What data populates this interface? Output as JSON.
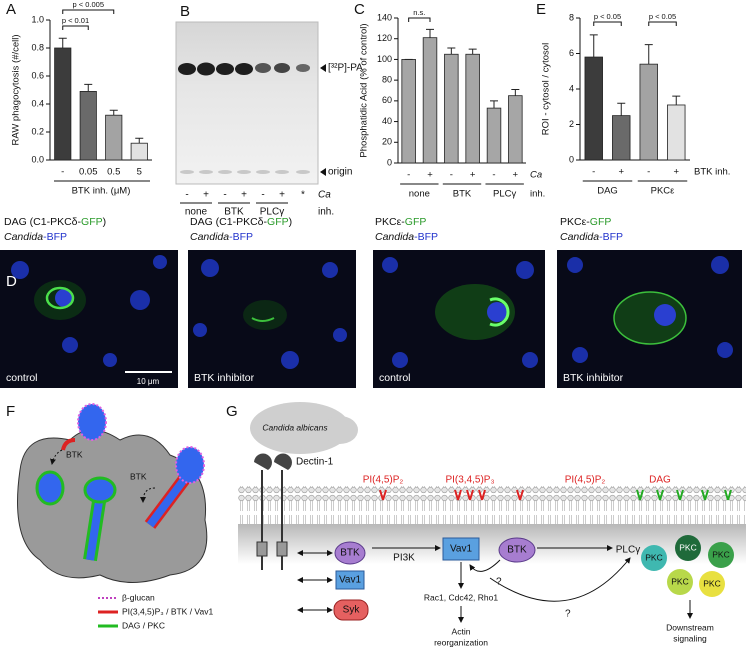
{
  "chart_data": [
    {
      "type": "bar",
      "panel": "A",
      "y_label": "RAW phagocytosis (#/cell)",
      "x_label": "BTK inh. (μM)",
      "categories": [
        "-",
        "0.05",
        "0.5",
        "5"
      ],
      "values": [
        0.8,
        0.49,
        0.32,
        0.12
      ],
      "errors": [
        0.07,
        0.05,
        0.035,
        0.035
      ],
      "colors": [
        "#3c3c3c",
        "#6a6a6a",
        "#a3a3a3",
        "#e2e2e2"
      ],
      "ylim": [
        0,
        1.0
      ],
      "yticks": [
        {
          "value": 0,
          "label": "0.0"
        },
        {
          "value": 0.2,
          "label": "0.2"
        },
        {
          "value": 0.4,
          "label": "0.4"
        },
        {
          "value": 0.6,
          "label": "0.6"
        },
        {
          "value": 0.8,
          "label": "0.8"
        },
        {
          "value": 1.0,
          "label": "1.0"
        }
      ],
      "annotations": [
        "p < 0.005",
        "p < 0.01"
      ]
    },
    {
      "type": "bar",
      "panel": "C",
      "y_label": "Phosphatidic Acid (% of control)",
      "categories": [
        "-",
        "+",
        "-",
        "+",
        "-",
        "+"
      ],
      "groups": [
        "none",
        "BTK",
        "PLCγ"
      ],
      "row_labels": [
        "Ca",
        "inh."
      ],
      "values": [
        100,
        121,
        105,
        105,
        53,
        65
      ],
      "errors": [
        0,
        8,
        6,
        5,
        7,
        6
      ],
      "color": "#a6a6a6",
      "ylim": [
        0,
        140
      ],
      "yticks": [
        0,
        20,
        40,
        60,
        80,
        100,
        120,
        140
      ],
      "annotations": [
        "n.s."
      ]
    },
    {
      "type": "bar",
      "panel": "E",
      "y_label": "ROI - cytosol / cytosol",
      "categories": [
        "-",
        "+",
        "-",
        "+"
      ],
      "groups": [
        "DAG",
        "PKCε"
      ],
      "row_labels": [
        "BTK inh."
      ],
      "values": [
        5.8,
        2.5,
        5.4,
        3.1
      ],
      "errors": [
        1.25,
        0.7,
        1.1,
        0.5
      ],
      "colors": [
        "#3c3c3c",
        "#6a6a6a",
        "#a3a3a3",
        "#e2e2e2"
      ],
      "ylim": [
        0,
        8
      ],
      "yticks": [
        0,
        2,
        4,
        6,
        8
      ],
      "annotations": [
        "p < 0.05",
        "p < 0.05"
      ]
    }
  ],
  "gel": {
    "panel": "B",
    "band_label": "[³²P]-PA",
    "origin_label": "origin",
    "lanes": [
      "-",
      "+",
      "-",
      "+",
      "-",
      "+",
      "*"
    ],
    "row_labels": [
      "Ca",
      "inh."
    ],
    "groups": [
      "none",
      "BTK",
      "PLCγ"
    ]
  },
  "microscopy": {
    "panel": "D",
    "scale_bar": "10 μm",
    "images": [
      {
        "title": [
          "DAG (C1-PKCδ-",
          "GFP",
          ")"
        ],
        "subtitle": [
          "Candida",
          "-BFP"
        ],
        "label": "control"
      },
      {
        "title": [
          "DAG (C1-PKCδ-",
          "GFP",
          ")"
        ],
        "subtitle": [
          "Candida",
          "-BFP"
        ],
        "label": "BTK inhibitor"
      },
      {
        "title": [
          "PKCε-",
          "GFP"
        ],
        "subtitle": [
          "Candida",
          "-BFP"
        ],
        "label": "control"
      },
      {
        "title": [
          "PKCε-",
          "GFP"
        ],
        "subtitle": [
          "Candida",
          "-BFP"
        ],
        "label": "BTK inhibitor"
      }
    ]
  },
  "model": {
    "panel": "F",
    "labels": [
      "BTK",
      "BTK"
    ],
    "legend": [
      "β-glucan",
      "PI(3,4,5)P₃ / BTK / Vav1",
      "DAG / PKC"
    ]
  },
  "pathway": {
    "panel": "G",
    "organism": "Candida albicans",
    "receptor": "Dectin-1",
    "lipids": [
      "PI(4,5)P₂",
      "PI(3,4,5)P₃",
      "PI(4,5)P₂",
      "DAG"
    ],
    "proteins": [
      "BTK",
      "Vav1",
      "Syk",
      "Vav1",
      "BTK"
    ],
    "kinases": [
      "PI3K",
      "PLCγ"
    ],
    "unknowns": [
      "?",
      "?"
    ],
    "effectors": "Rac1, Cdc42, Rho1",
    "outcomes": [
      [
        "Actin",
        "reorganization"
      ],
      [
        "Downstream",
        "signaling"
      ]
    ],
    "pkc": [
      "PKC",
      "PKC",
      "PKC",
      "PKC",
      "PKC"
    ]
  }
}
